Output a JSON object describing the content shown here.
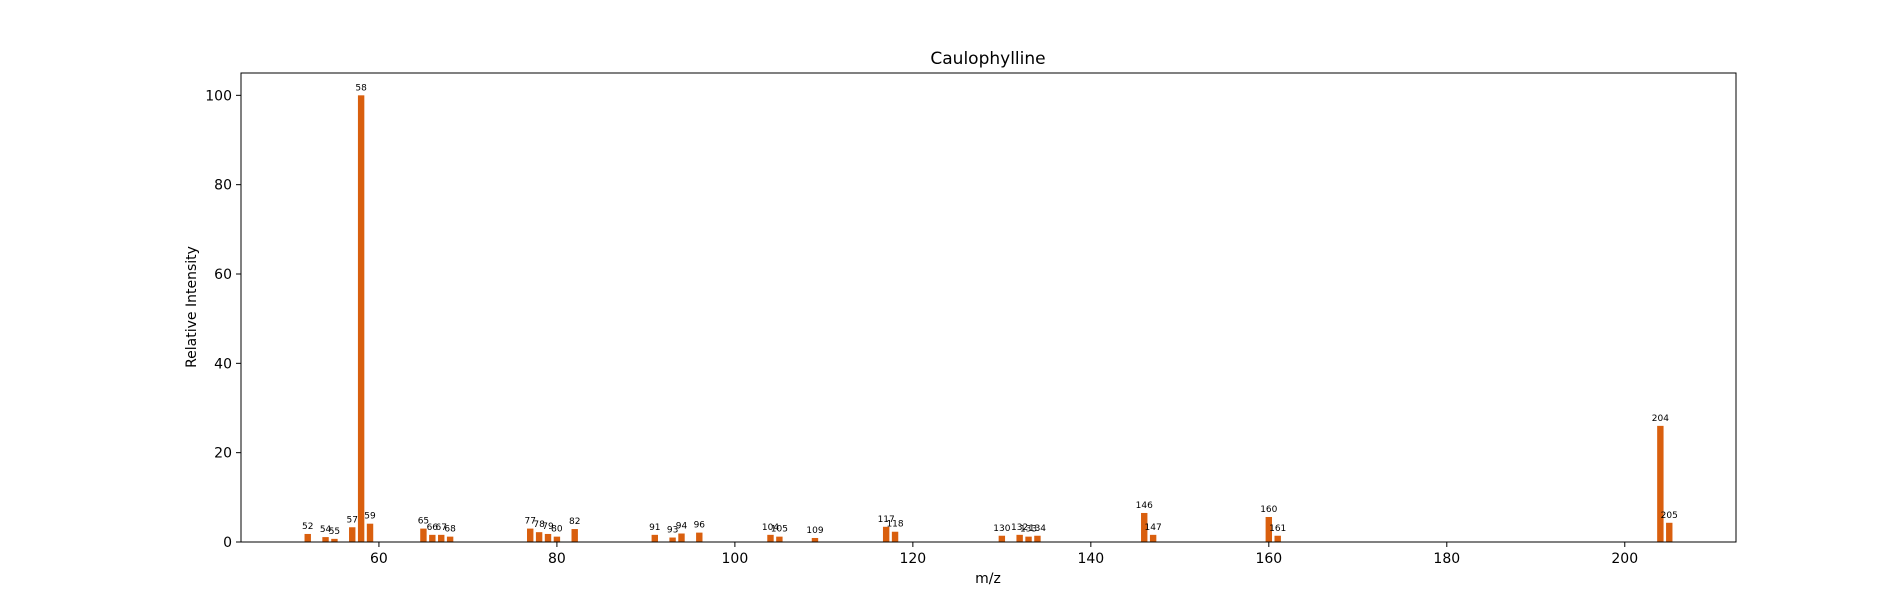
{
  "chart_data": {
    "type": "bar",
    "title": "Caulophylline",
    "xlabel": "m/z",
    "ylabel": "Relative Intensity",
    "xlim": [
      44.5,
      212.5
    ],
    "ylim": [
      0,
      105
    ],
    "xticks": [
      60,
      80,
      100,
      120,
      140,
      160,
      180,
      200
    ],
    "yticks": [
      0,
      20,
      40,
      60,
      80,
      100
    ],
    "grid": false,
    "bar_color": "#d95f0e",
    "series": [
      {
        "x": [
          52,
          54,
          55,
          57,
          58,
          59,
          65,
          66,
          67,
          68,
          77,
          78,
          79,
          80,
          82,
          91,
          93,
          94,
          96,
          104,
          105,
          109,
          117,
          118,
          130,
          132,
          133,
          134,
          146,
          147,
          160,
          161,
          204,
          205
        ],
        "values": [
          1.8,
          1.1,
          0.7,
          3.3,
          100,
          4.1,
          3.0,
          1.6,
          1.6,
          1.2,
          3.0,
          2.2,
          1.8,
          1.2,
          2.9,
          1.6,
          1.0,
          1.9,
          2.1,
          1.6,
          1.2,
          0.9,
          3.4,
          2.3,
          1.4,
          1.6,
          1.2,
          1.4,
          6.5,
          1.6,
          5.6,
          1.4,
          26,
          4.3
        ],
        "labels": [
          "52",
          "54",
          "55",
          "57",
          "58",
          "59",
          "65",
          "66",
          "67",
          "68",
          "77",
          "78",
          "79",
          "80",
          "82",
          "91",
          "93",
          "94",
          "96",
          "104",
          "105",
          "109",
          "117",
          "118",
          "130",
          "132",
          "133",
          "134",
          "146",
          "147",
          "160",
          "161",
          "204",
          "205"
        ]
      }
    ]
  }
}
